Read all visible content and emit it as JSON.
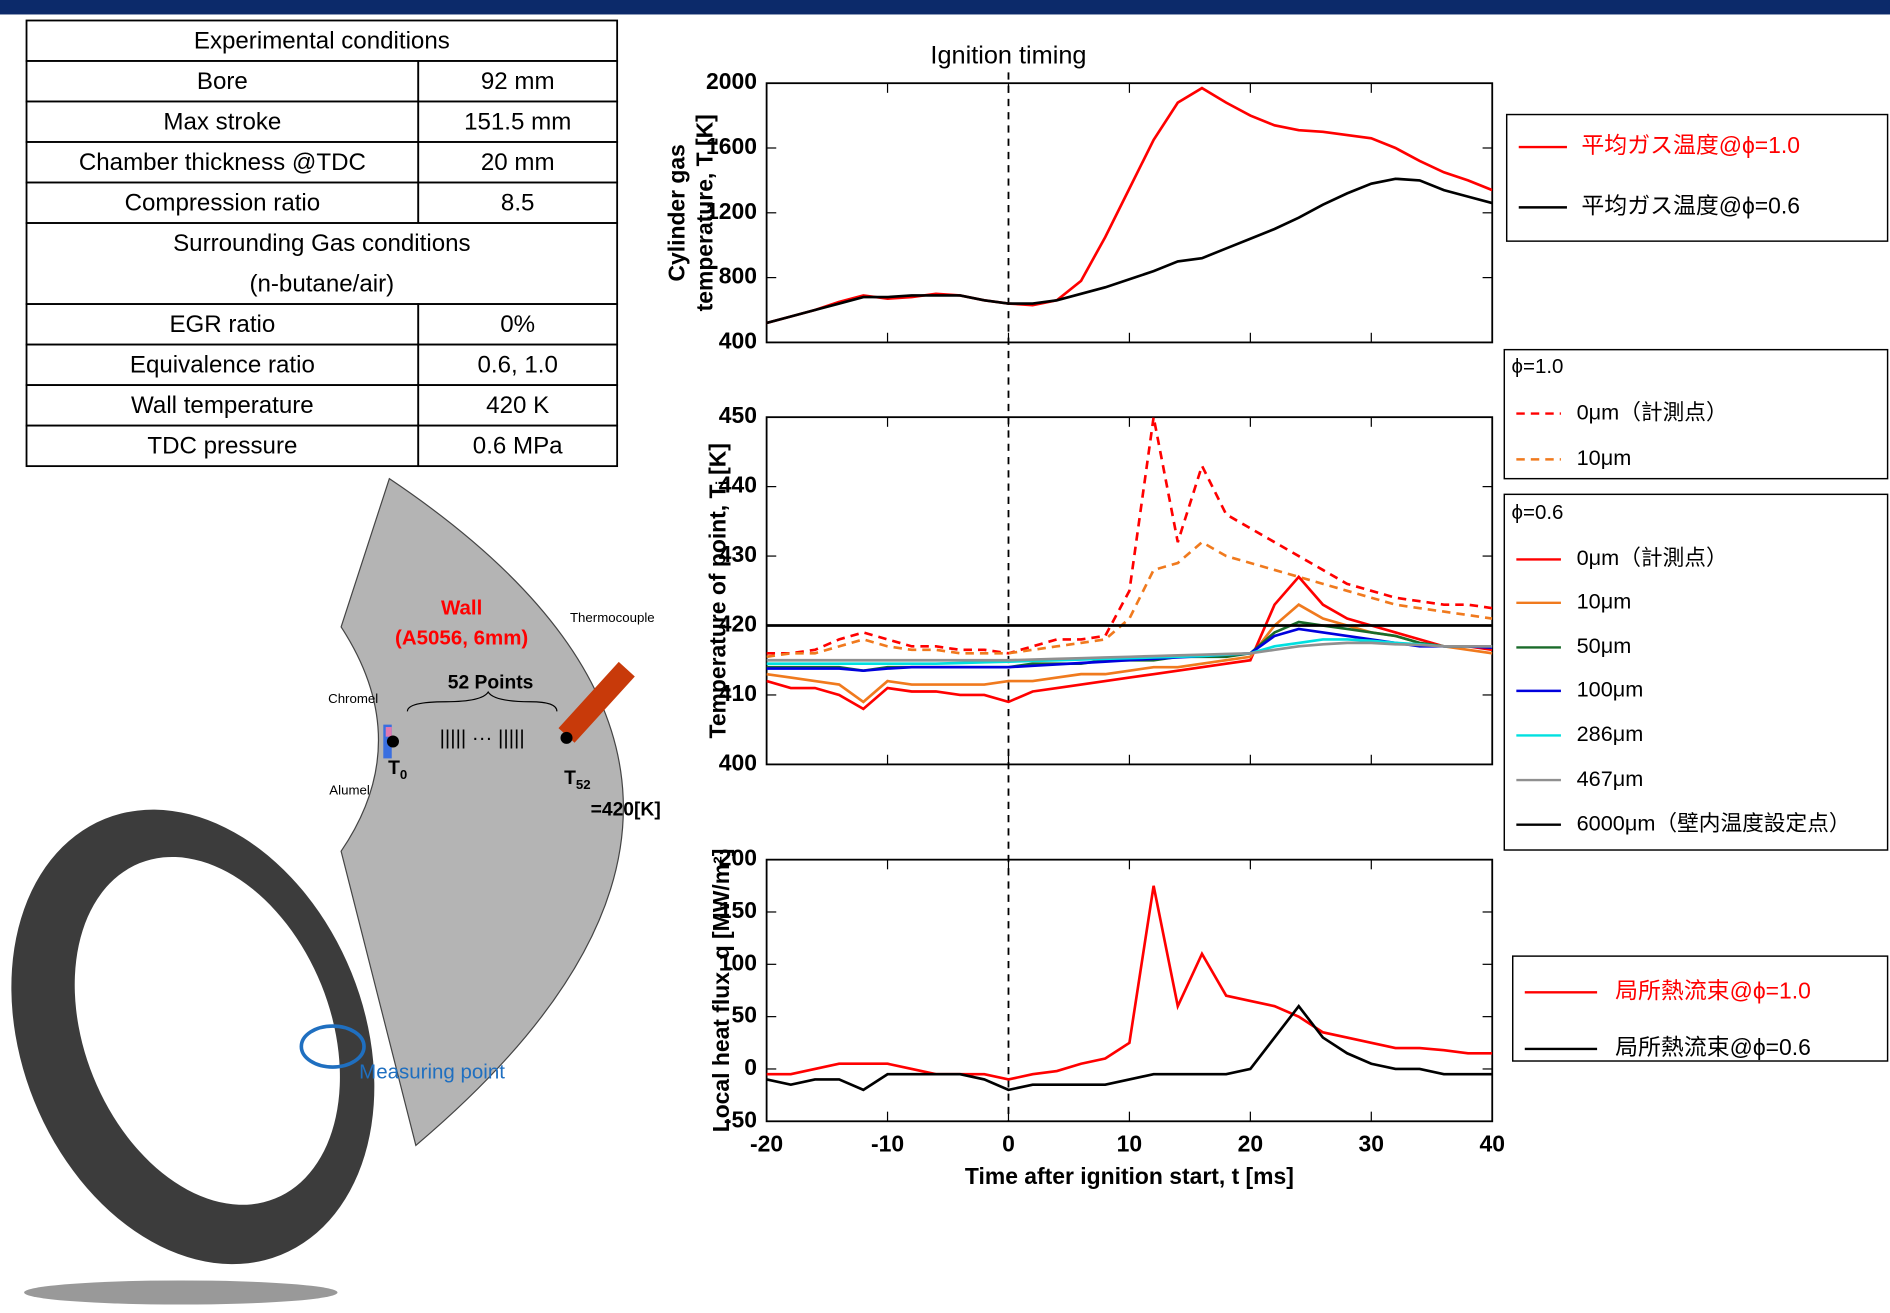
{
  "table": {
    "rows": [
      [
        [
          "Experimental conditions"
        ]
      ],
      [
        "Bore",
        "92 mm"
      ],
      [
        "Max stroke",
        "151.5 mm"
      ],
      [
        "Chamber thickness @TDC",
        "20 mm"
      ],
      [
        "Compression ratio",
        "8.5"
      ],
      [
        [
          "Surrounding Gas conditions",
          "(n-butane/air)"
        ]
      ],
      [
        "EGR ratio",
        "0%"
      ],
      [
        "Equivalence ratio",
        "0.6, 1.0"
      ],
      [
        "Wall temperature",
        "420 K"
      ],
      [
        "TDC pressure",
        "0.6 MPa"
      ]
    ]
  },
  "diagram": {
    "wall": [
      "Wall",
      "(A5056, 6mm)"
    ],
    "thermocouple": "Thermocouple",
    "chromel": "Chromel",
    "alumel": "Alumel",
    "points": "52 Points",
    "dots": "|||||  ···  |||||",
    "t0": {
      "symbol": "T",
      "sub": "0"
    },
    "t52": {
      "symbol": "T",
      "sub": "52"
    },
    "wall_temperature": "=420[K]",
    "measuring_point": "Measuring point"
  },
  "chart_data": [
    {
      "type": "line",
      "ylabel": [
        "Cylinder gas",
        "temperature, T [K]"
      ],
      "annotation": {
        "text": "Ignition timing",
        "x": 0
      },
      "x": [
        -20,
        -18,
        -16,
        -14,
        -12,
        -10,
        -8,
        -6,
        -4,
        -2,
        0,
        2,
        4,
        6,
        8,
        10,
        12,
        14,
        16,
        18,
        20,
        22,
        24,
        26,
        28,
        30,
        32,
        34,
        36,
        38,
        40
      ],
      "xlim": [
        -20,
        40
      ],
      "xticks": [
        -20,
        -10,
        0,
        10,
        20,
        30,
        40
      ],
      "show_xtick_labels": false,
      "ylim": [
        400,
        2000
      ],
      "yticks": [
        400,
        800,
        1200,
        1600,
        2000
      ],
      "legend": "right",
      "legend_text_colored": true,
      "series": [
        {
          "name": "平均ガス温度@ϕ=1.0",
          "color": "#ff0000",
          "values": [
            520,
            560,
            600,
            650,
            690,
            670,
            680,
            700,
            690,
            660,
            640,
            630,
            660,
            780,
            1050,
            1350,
            1650,
            1880,
            1970,
            1880,
            1800,
            1740,
            1710,
            1700,
            1680,
            1660,
            1600,
            1520,
            1450,
            1400,
            1340
          ]
        },
        {
          "name": "平均ガス温度@ϕ=0.6",
          "color": "#000000",
          "values": [
            520,
            560,
            600,
            640,
            680,
            680,
            690,
            690,
            690,
            660,
            640,
            640,
            660,
            700,
            740,
            790,
            840,
            900,
            920,
            980,
            1040,
            1100,
            1170,
            1250,
            1320,
            1380,
            1410,
            1400,
            1340,
            1300,
            1260
          ]
        }
      ]
    },
    {
      "type": "line",
      "ylabel": [
        "Temperature of point, Tᵢ [K]"
      ],
      "x": [
        -20,
        -18,
        -16,
        -14,
        -12,
        -10,
        -8,
        -6,
        -4,
        -2,
        0,
        2,
        4,
        6,
        8,
        10,
        12,
        14,
        16,
        18,
        20,
        22,
        24,
        26,
        28,
        30,
        32,
        34,
        36,
        38,
        40
      ],
      "xlim": [
        -20,
        40
      ],
      "xticks": [
        -20,
        -10,
        0,
        10,
        20,
        30,
        40
      ],
      "show_xtick_labels": false,
      "ylim": [
        400,
        450
      ],
      "yticks": [
        400,
        410,
        420,
        430,
        440,
        450
      ],
      "legend": "right",
      "legend_text_colored": false,
      "series_groups": [
        {
          "name": "ϕ=1.0",
          "series": [
            {
              "name": "0μm（計測点）",
              "color": "#ff0000",
              "dash": true,
              "values": [
                416,
                416,
                416.5,
                418,
                419,
                418,
                417,
                417,
                416.5,
                416.5,
                416,
                417,
                418,
                418,
                418.5,
                425,
                450,
                432,
                443,
                436,
                434,
                432,
                430,
                428,
                426,
                425,
                424,
                423.5,
                423,
                423,
                422.5
              ]
            },
            {
              "name": "10μm",
              "color": "#f07a1e",
              "dash": true,
              "values": [
                415.5,
                416,
                416,
                417,
                418,
                417,
                416.5,
                416.5,
                416,
                416,
                416,
                416.5,
                417,
                417.5,
                418,
                421,
                428,
                429,
                432,
                430,
                429,
                428,
                427,
                426,
                425,
                424,
                423,
                422.5,
                422,
                421.5,
                421
              ]
            }
          ]
        },
        {
          "name": "ϕ=0.6",
          "series": [
            {
              "name": "0μm（計測点）",
              "color": "#ff0000",
              "values": [
                412,
                411,
                411,
                410,
                408,
                411,
                410.5,
                410.5,
                410,
                410,
                409,
                410.5,
                411,
                411.5,
                412,
                412.5,
                413,
                413.5,
                414,
                414.5,
                415,
                423,
                427,
                423,
                421,
                420,
                419,
                418,
                417,
                417,
                416.5
              ]
            },
            {
              "name": "10μm",
              "color": "#f07a1e",
              "values": [
                413,
                412.5,
                412,
                411.5,
                409,
                412,
                411.5,
                411.5,
                411.5,
                411.5,
                412,
                412,
                412.5,
                413,
                413,
                413.5,
                414,
                414,
                414.5,
                415,
                415.5,
                420,
                423,
                421,
                420,
                419,
                418.5,
                417.5,
                417,
                416.5,
                416
              ]
            },
            {
              "name": "50μm",
              "color": "#1a6b2a",
              "values": [
                414,
                414,
                414,
                414,
                413.5,
                414,
                414,
                414,
                414,
                414,
                414,
                414.5,
                414.5,
                414.5,
                415,
                415,
                415,
                415.5,
                415.5,
                415.5,
                416,
                419,
                420.5,
                420,
                419.5,
                419,
                418.5,
                417.5,
                417,
                417,
                417
              ]
            },
            {
              "name": "100μm",
              "color": "#0000dd",
              "values": [
                413.8,
                413.8,
                413.8,
                413.8,
                413.5,
                413.8,
                414,
                414,
                414,
                414,
                414,
                414.2,
                414.4,
                414.6,
                414.8,
                415,
                415.2,
                415.4,
                415.6,
                415.8,
                416,
                418.5,
                419.5,
                419,
                418.5,
                418,
                417.5,
                417,
                417,
                417,
                416.8
              ]
            },
            {
              "name": "286μm",
              "color": "#00e0e0",
              "values": [
                414.5,
                414.5,
                414.5,
                414.5,
                414.5,
                414.5,
                414.5,
                414.5,
                414.6,
                414.7,
                414.8,
                414.9,
                415,
                415.1,
                415.2,
                415.3,
                415.4,
                415.5,
                415.6,
                415.8,
                416,
                417,
                417.5,
                418,
                418,
                417.8,
                417.5,
                417.3,
                417,
                417,
                417
              ]
            },
            {
              "name": "467μm",
              "color": "#909090",
              "values": [
                415,
                415,
                415,
                415,
                415,
                415,
                415,
                415,
                415,
                415,
                415,
                415.1,
                415.2,
                415.3,
                415.4,
                415.5,
                415.6,
                415.7,
                415.8,
                415.9,
                416,
                416.5,
                417,
                417.3,
                417.5,
                417.5,
                417.3,
                417.2,
                417,
                417,
                417
              ]
            },
            {
              "name": "6000μm（壁内温度設定点）",
              "color": "#000000",
              "values": [
                420,
                420,
                420,
                420,
                420,
                420,
                420,
                420,
                420,
                420,
                420,
                420,
                420,
                420,
                420,
                420,
                420,
                420,
                420,
                420,
                420,
                420,
                420,
                420,
                420,
                420,
                420,
                420,
                420,
                420,
                420
              ]
            }
          ]
        }
      ]
    },
    {
      "type": "line",
      "ylabel": [
        "Local heat flux, q [MW/m²]"
      ],
      "xlabel": "Time after ignition start, t [ms]",
      "x": [
        -20,
        -18,
        -16,
        -14,
        -12,
        -10,
        -8,
        -6,
        -4,
        -2,
        0,
        2,
        4,
        6,
        8,
        10,
        12,
        14,
        16,
        18,
        20,
        22,
        24,
        26,
        28,
        30,
        32,
        34,
        36,
        38,
        40
      ],
      "xlim": [
        -20,
        40
      ],
      "xticks": [
        -20,
        -10,
        0,
        10,
        20,
        30,
        40
      ],
      "show_xtick_labels": true,
      "ylim": [
        -50,
        200
      ],
      "yticks": [
        -50,
        0,
        50,
        100,
        150,
        200
      ],
      "legend": "right",
      "legend_text_colored": true,
      "series": [
        {
          "name": "局所熱流束@ϕ=1.0",
          "color": "#ff0000",
          "values": [
            -5,
            -5,
            0,
            5,
            5,
            5,
            0,
            -5,
            -5,
            -5,
            -10,
            -5,
            -2,
            5,
            10,
            25,
            175,
            60,
            110,
            70,
            65,
            60,
            50,
            35,
            30,
            25,
            20,
            20,
            18,
            15,
            15
          ]
        },
        {
          "name": "局所熱流束@ϕ=0.6",
          "color": "#000000",
          "values": [
            -10,
            -15,
            -10,
            -10,
            -20,
            -5,
            -5,
            -5,
            -5,
            -10,
            -20,
            -15,
            -15,
            -15,
            -15,
            -10,
            -5,
            -5,
            -5,
            -5,
            0,
            30,
            60,
            30,
            15,
            5,
            0,
            0,
            -5,
            -5,
            -5
          ]
        }
      ]
    }
  ]
}
